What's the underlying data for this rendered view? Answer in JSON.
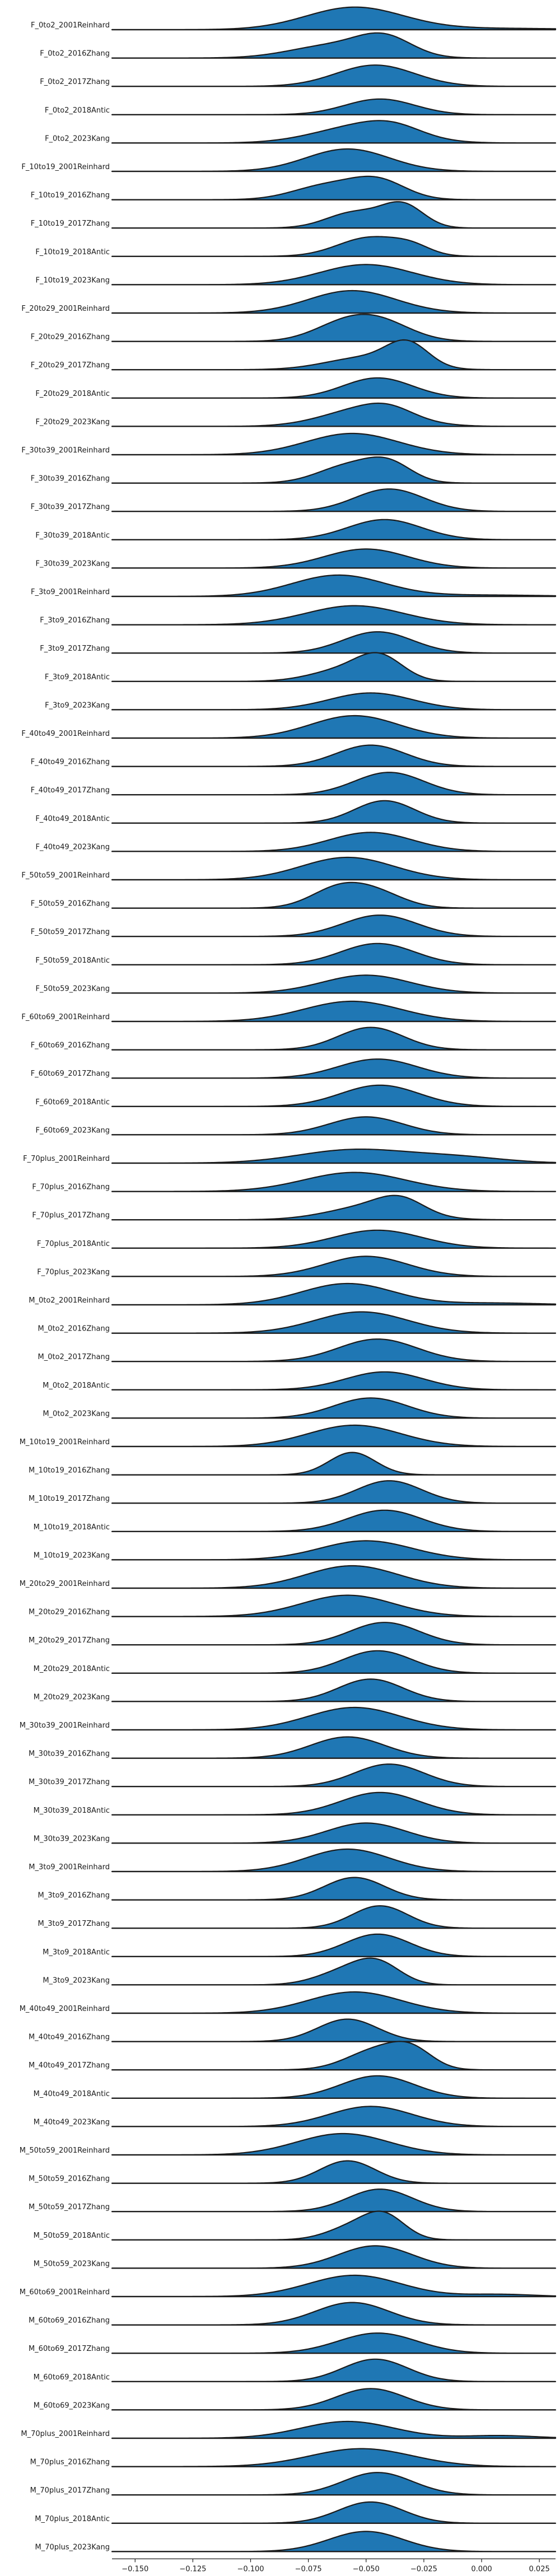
{
  "chart_data": {
    "type": "area",
    "title": "",
    "xlabel": "",
    "ylabel": "",
    "xlim": [
      -0.16,
      0.032
    ],
    "x_ticks": [
      -0.15,
      -0.125,
      -0.1,
      -0.075,
      -0.05,
      -0.025,
      0.0,
      0.025
    ],
    "x_tick_labels": [
      "−0.150",
      "−0.125",
      "−0.100",
      "−0.075",
      "−0.050",
      "−0.025",
      "0.000",
      "0.025"
    ],
    "fill_color": "#1f77b4",
    "line_color": "#1b1b1b",
    "grid": false,
    "series": [
      {
        "name": "F_0to2_2001Reinhard",
        "peaks": [
          [
            -0.055,
            0.021,
            1.0
          ]
        ],
        "tail": [
          0.005,
          0.03,
          0.06
        ]
      },
      {
        "name": "F_0to2_2016Zhang",
        "peaks": [
          [
            -0.065,
            0.018,
            0.55
          ],
          [
            -0.042,
            0.012,
            0.85
          ]
        ]
      },
      {
        "name": "F_0to2_2017Zhang",
        "peaks": [
          [
            -0.046,
            0.017,
            0.95
          ]
        ]
      },
      {
        "name": "F_0to2_2018Antic",
        "peaks": [
          [
            -0.044,
            0.015,
            0.7
          ]
        ]
      },
      {
        "name": "F_0to2_2023Kang",
        "peaks": [
          [
            -0.052,
            0.02,
            0.75
          ],
          [
            -0.038,
            0.012,
            0.35
          ]
        ]
      },
      {
        "name": "F_10to19_2001Reinhard",
        "peaks": [
          [
            -0.058,
            0.018,
            1.0
          ]
        ]
      },
      {
        "name": "F_10to19_2016Zhang",
        "peaks": [
          [
            -0.068,
            0.014,
            0.6
          ],
          [
            -0.045,
            0.012,
            0.85
          ]
        ]
      },
      {
        "name": "F_10to19_2017Zhang",
        "peaks": [
          [
            -0.055,
            0.012,
            0.7
          ],
          [
            -0.034,
            0.009,
            1.0
          ]
        ]
      },
      {
        "name": "F_10to19_2018Antic",
        "peaks": [
          [
            -0.048,
            0.014,
            0.85
          ],
          [
            -0.03,
            0.008,
            0.3
          ]
        ]
      },
      {
        "name": "F_10to19_2023Kang",
        "peaks": [
          [
            -0.05,
            0.02,
            0.9
          ]
        ]
      },
      {
        "name": "F_20to29_2001Reinhard",
        "peaks": [
          [
            -0.056,
            0.019,
            1.0
          ]
        ]
      },
      {
        "name": "F_20to29_2016Zhang",
        "peaks": [
          [
            -0.062,
            0.013,
            0.55
          ],
          [
            -0.045,
            0.014,
            0.9
          ]
        ]
      },
      {
        "name": "F_20to29_2017Zhang",
        "peaks": [
          [
            -0.05,
            0.017,
            0.55
          ],
          [
            -0.032,
            0.009,
            1.0
          ]
        ]
      },
      {
        "name": "F_20to29_2018Antic",
        "peaks": [
          [
            -0.045,
            0.015,
            0.9
          ]
        ]
      },
      {
        "name": "F_20to29_2023Kang",
        "peaks": [
          [
            -0.05,
            0.018,
            0.8
          ],
          [
            -0.04,
            0.01,
            0.3
          ]
        ]
      },
      {
        "name": "F_30to39_2001Reinhard",
        "peaks": [
          [
            -0.056,
            0.02,
            0.95
          ]
        ]
      },
      {
        "name": "F_30to39_2016Zhang",
        "peaks": [
          [
            -0.058,
            0.013,
            0.75
          ],
          [
            -0.04,
            0.01,
            0.8
          ]
        ]
      },
      {
        "name": "F_30to39_2017Zhang",
        "peaks": [
          [
            -0.04,
            0.015,
            1.0
          ]
        ]
      },
      {
        "name": "F_30to39_2018Antic",
        "peaks": [
          [
            -0.042,
            0.016,
            0.9
          ]
        ]
      },
      {
        "name": "F_30to39_2023Kang",
        "peaks": [
          [
            -0.05,
            0.018,
            0.85
          ]
        ]
      },
      {
        "name": "F_3to9_2001Reinhard",
        "peaks": [
          [
            -0.062,
            0.02,
            0.95
          ]
        ],
        "tail": [
          0.002,
          0.025,
          0.06
        ]
      },
      {
        "name": "F_3to9_2016Zhang",
        "peaks": [
          [
            -0.055,
            0.021,
            0.85
          ]
        ]
      },
      {
        "name": "F_3to9_2017Zhang",
        "peaks": [
          [
            -0.045,
            0.015,
            0.95
          ]
        ]
      },
      {
        "name": "F_3to9_2018Antic",
        "peaks": [
          [
            -0.06,
            0.014,
            0.5
          ],
          [
            -0.044,
            0.01,
            1.0
          ]
        ]
      },
      {
        "name": "F_3to9_2023Kang",
        "peaks": [
          [
            -0.048,
            0.018,
            0.75
          ]
        ]
      },
      {
        "name": "F_40to49_2001Reinhard",
        "peaks": [
          [
            -0.055,
            0.019,
            1.0
          ]
        ]
      },
      {
        "name": "F_40to49_2016Zhang",
        "peaks": [
          [
            -0.048,
            0.015,
            0.95
          ]
        ]
      },
      {
        "name": "F_40to49_2017Zhang",
        "peaks": [
          [
            -0.04,
            0.015,
            1.0
          ]
        ]
      },
      {
        "name": "F_40to49_2018Antic",
        "peaks": [
          [
            -0.042,
            0.013,
            1.0
          ]
        ]
      },
      {
        "name": "F_40to49_2023Kang",
        "peaks": [
          [
            -0.048,
            0.018,
            0.85
          ]
        ]
      },
      {
        "name": "F_50to59_2001Reinhard",
        "peaks": [
          [
            -0.058,
            0.02,
            1.0
          ]
        ]
      },
      {
        "name": "F_50to59_2016Zhang",
        "peaks": [
          [
            -0.062,
            0.012,
            0.85
          ],
          [
            -0.045,
            0.012,
            0.6
          ]
        ]
      },
      {
        "name": "F_50to59_2017Zhang",
        "peaks": [
          [
            -0.044,
            0.016,
            0.95
          ]
        ]
      },
      {
        "name": "F_50to59_2018Antic",
        "peaks": [
          [
            -0.045,
            0.016,
            0.95
          ]
        ]
      },
      {
        "name": "F_50to59_2023Kang",
        "peaks": [
          [
            -0.05,
            0.019,
            0.8
          ]
        ]
      },
      {
        "name": "F_60to69_2001Reinhard",
        "peaks": [
          [
            -0.056,
            0.021,
            0.9
          ]
        ]
      },
      {
        "name": "F_60to69_2016Zhang",
        "peaks": [
          [
            -0.048,
            0.014,
            1.0
          ]
        ]
      },
      {
        "name": "F_60to69_2017Zhang",
        "peaks": [
          [
            -0.045,
            0.017,
            0.85
          ]
        ]
      },
      {
        "name": "F_60to69_2018Antic",
        "peaks": [
          [
            -0.044,
            0.017,
            0.95
          ]
        ]
      },
      {
        "name": "F_60to69_2023Kang",
        "peaks": [
          [
            -0.05,
            0.016,
            0.8
          ]
        ]
      },
      {
        "name": "F_70plus_2001Reinhard",
        "peaks": [
          [
            -0.055,
            0.024,
            0.6
          ]
        ],
        "tail": [
          -0.01,
          0.02,
          0.25
        ]
      },
      {
        "name": "F_70plus_2016Zhang",
        "peaks": [
          [
            -0.055,
            0.022,
            0.85
          ]
        ]
      },
      {
        "name": "F_70plus_2017Zhang",
        "peaks": [
          [
            -0.048,
            0.018,
            0.6
          ],
          [
            -0.035,
            0.01,
            0.6
          ]
        ]
      },
      {
        "name": "F_70plus_2018Antic",
        "peaks": [
          [
            -0.045,
            0.019,
            0.8
          ]
        ]
      },
      {
        "name": "F_70plus_2023Kang",
        "peaks": [
          [
            -0.05,
            0.018,
            0.9
          ]
        ]
      },
      {
        "name": "M_0to2_2001Reinhard",
        "peaks": [
          [
            -0.058,
            0.02,
            0.95
          ]
        ],
        "tail": [
          0.005,
          0.02,
          0.08
        ]
      },
      {
        "name": "M_0to2_2016Zhang",
        "peaks": [
          [
            -0.052,
            0.02,
            0.95
          ]
        ]
      },
      {
        "name": "M_0to2_2017Zhang",
        "peaks": [
          [
            -0.045,
            0.017,
            1.0
          ]
        ]
      },
      {
        "name": "M_0to2_2018Antic",
        "peaks": [
          [
            -0.042,
            0.017,
            0.8
          ]
        ]
      },
      {
        "name": "M_0to2_2023Kang",
        "peaks": [
          [
            -0.048,
            0.016,
            0.9
          ]
        ]
      },
      {
        "name": "M_10to19_2001Reinhard",
        "peaks": [
          [
            -0.055,
            0.02,
            0.95
          ]
        ]
      },
      {
        "name": "M_10to19_2016Zhang",
        "peaks": [
          [
            -0.056,
            0.01,
            1.0
          ]
        ]
      },
      {
        "name": "M_10to19_2017Zhang",
        "peaks": [
          [
            -0.04,
            0.014,
            1.0
          ]
        ]
      },
      {
        "name": "M_10to19_2018Antic",
        "peaks": [
          [
            -0.042,
            0.016,
            0.95
          ]
        ]
      },
      {
        "name": "M_10to19_2023Kang",
        "peaks": [
          [
            -0.05,
            0.02,
            0.85
          ]
        ]
      },
      {
        "name": "M_20to29_2001Reinhard",
        "peaks": [
          [
            -0.056,
            0.02,
            1.0
          ]
        ]
      },
      {
        "name": "M_20to29_2016Zhang",
        "peaks": [
          [
            -0.058,
            0.02,
            0.95
          ]
        ]
      },
      {
        "name": "M_20to29_2017Zhang",
        "peaks": [
          [
            -0.042,
            0.015,
            1.0
          ]
        ]
      },
      {
        "name": "M_20to29_2018Antic",
        "peaks": [
          [
            -0.045,
            0.015,
            1.0
          ]
        ]
      },
      {
        "name": "M_20to29_2023Kang",
        "peaks": [
          [
            -0.048,
            0.014,
            1.0
          ]
        ]
      },
      {
        "name": "M_30to39_2001Reinhard",
        "peaks": [
          [
            -0.055,
            0.02,
            1.0
          ]
        ]
      },
      {
        "name": "M_30to39_2016Zhang",
        "peaks": [
          [
            -0.058,
            0.016,
            0.95
          ]
        ]
      },
      {
        "name": "M_30to39_2017Zhang",
        "peaks": [
          [
            -0.04,
            0.015,
            1.0
          ]
        ]
      },
      {
        "name": "M_30to39_2018Antic",
        "peaks": [
          [
            -0.044,
            0.017,
            1.0
          ]
        ]
      },
      {
        "name": "M_30to39_2023Kang",
        "peaks": [
          [
            -0.05,
            0.017,
            0.9
          ]
        ]
      },
      {
        "name": "M_3to9_2001Reinhard",
        "peaks": [
          [
            -0.058,
            0.018,
            1.0
          ]
        ]
      },
      {
        "name": "M_3to9_2016Zhang",
        "peaks": [
          [
            -0.055,
            0.013,
            1.0
          ]
        ]
      },
      {
        "name": "M_3to9_2017Zhang",
        "peaks": [
          [
            -0.044,
            0.012,
            1.0
          ]
        ]
      },
      {
        "name": "M_3to9_2018Antic",
        "peaks": [
          [
            -0.045,
            0.014,
            1.0
          ]
        ]
      },
      {
        "name": "M_3to9_2023Kang",
        "peaks": [
          [
            -0.06,
            0.012,
            0.55
          ],
          [
            -0.045,
            0.01,
            0.9
          ]
        ]
      },
      {
        "name": "M_40to49_2001Reinhard",
        "peaks": [
          [
            -0.055,
            0.02,
            0.95
          ]
        ]
      },
      {
        "name": "M_40to49_2016Zhang",
        "peaks": [
          [
            -0.058,
            0.013,
            1.0
          ]
        ]
      },
      {
        "name": "M_40to49_2017Zhang",
        "peaks": [
          [
            -0.045,
            0.013,
            0.9
          ],
          [
            -0.03,
            0.009,
            0.7
          ]
        ]
      },
      {
        "name": "M_40to49_2018Antic",
        "peaks": [
          [
            -0.045,
            0.016,
            1.0
          ]
        ]
      },
      {
        "name": "M_40to49_2023Kang",
        "peaks": [
          [
            -0.048,
            0.018,
            0.9
          ]
        ]
      },
      {
        "name": "M_50to59_2001Reinhard",
        "peaks": [
          [
            -0.06,
            0.02,
            0.95
          ]
        ]
      },
      {
        "name": "M_50to59_2016Zhang",
        "peaks": [
          [
            -0.058,
            0.012,
            1.0
          ]
        ]
      },
      {
        "name": "M_50to59_2017Zhang",
        "peaks": [
          [
            -0.044,
            0.014,
            1.0
          ]
        ]
      },
      {
        "name": "M_50to59_2018Antic",
        "peaks": [
          [
            -0.056,
            0.011,
            0.55
          ],
          [
            -0.042,
            0.009,
            1.0
          ]
        ]
      },
      {
        "name": "M_50to59_2023Kang",
        "peaks": [
          [
            -0.046,
            0.016,
            1.0
          ]
        ]
      },
      {
        "name": "M_60to69_2001Reinhard",
        "peaks": [
          [
            -0.055,
            0.02,
            0.95
          ]
        ],
        "tail": [
          0.008,
          0.015,
          0.1
        ]
      },
      {
        "name": "M_60to69_2016Zhang",
        "peaks": [
          [
            -0.056,
            0.016,
            1.0
          ]
        ]
      },
      {
        "name": "M_60to69_2017Zhang",
        "peaks": [
          [
            -0.045,
            0.017,
            0.9
          ]
        ]
      },
      {
        "name": "M_60to69_2018Antic",
        "peaks": [
          [
            -0.046,
            0.014,
            1.0
          ]
        ]
      },
      {
        "name": "M_60to69_2023Kang",
        "peaks": [
          [
            -0.048,
            0.015,
            0.95
          ]
        ]
      },
      {
        "name": "M_70plus_2001Reinhard",
        "peaks": [
          [
            -0.058,
            0.02,
            0.75
          ]
        ],
        "tail": [
          0.008,
          0.015,
          0.12
        ]
      },
      {
        "name": "M_70plus_2016Zhang",
        "peaks": [
          [
            -0.052,
            0.022,
            0.8
          ]
        ]
      },
      {
        "name": "M_70plus_2017Zhang",
        "peaks": [
          [
            -0.045,
            0.015,
            1.0
          ]
        ]
      },
      {
        "name": "M_70plus_2018Antic",
        "peaks": [
          [
            -0.048,
            0.014,
            0.95
          ]
        ]
      },
      {
        "name": "M_70plus_2023Kang",
        "peaks": [
          [
            -0.05,
            0.016,
            0.9
          ]
        ]
      }
    ]
  }
}
